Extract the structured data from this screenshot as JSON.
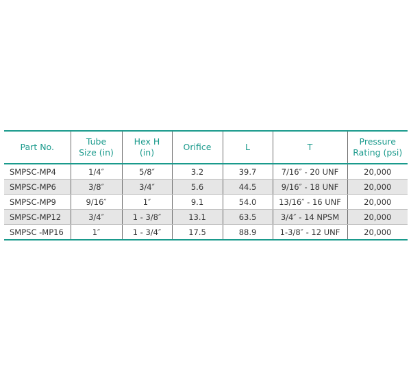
{
  "table": {
    "header": [
      [
        "Part No."
      ],
      [
        "Tube",
        "Size (in)"
      ],
      [
        "Hex H",
        "(in)"
      ],
      [
        "Orifice"
      ],
      [
        "L"
      ],
      [
        "T"
      ],
      [
        "Pressure",
        "Rating (psi)"
      ]
    ],
    "rows": [
      [
        "SMPSC-MP4",
        "1/4″",
        "5/8″",
        "3.2",
        "39.7",
        "7/16″ - 20 UNF",
        "20,000"
      ],
      [
        "SMPSC-MP6",
        "3/8″",
        "3/4″",
        "5.6",
        "44.5",
        "9/16″ - 18 UNF",
        "20,000"
      ],
      [
        "SMPSC-MP9",
        "9/16″",
        "1″",
        "9.1",
        "54.0",
        "13/16″ - 16 UNF",
        "20,000"
      ],
      [
        "SMPSC-MP12",
        "3/4″",
        "1 - 3/8″",
        "13.1",
        "63.5",
        "3/4″ - 14 NPSM",
        "20,000"
      ],
      [
        "SMPSC -MP16",
        "1″",
        "1 - 3/4″",
        "17.5",
        "88.9",
        "1-3/8″ - 12 UNF",
        "20,000"
      ]
    ]
  }
}
